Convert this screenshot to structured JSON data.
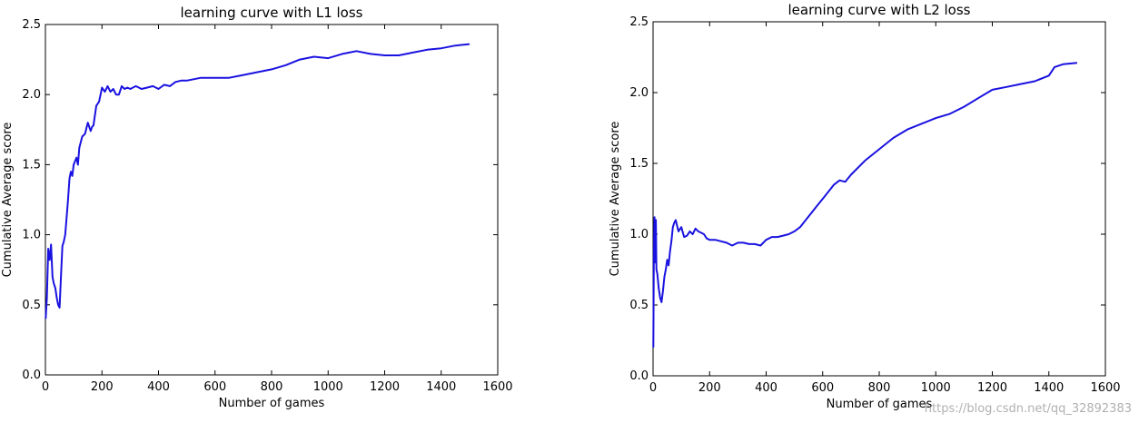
{
  "watermark": "https://blog.csdn.net/qq_32892383",
  "chart_data": [
    {
      "type": "line",
      "title": "learning curve with L1 loss",
      "xlabel": "Number of games",
      "ylabel": "Cumulative Average score",
      "xlim": [
        0,
        1600
      ],
      "ylim": [
        0.0,
        2.5
      ],
      "xticks": [
        0,
        200,
        400,
        600,
        800,
        1000,
        1200,
        1400,
        1600
      ],
      "yticks": [
        0.0,
        0.5,
        1.0,
        1.5,
        2.0,
        2.5
      ],
      "grid": false,
      "line_color": "#1a12e0",
      "series": [
        {
          "x": [
            1,
            5,
            10,
            15,
            20,
            25,
            30,
            35,
            40,
            45,
            50,
            55,
            60,
            65,
            70,
            75,
            80,
            85,
            90,
            95,
            100,
            110,
            115,
            120,
            130,
            140,
            150,
            160,
            165,
            170,
            180,
            190,
            200,
            210,
            220,
            230,
            240,
            250,
            260,
            270,
            280,
            290,
            300,
            320,
            340,
            360,
            380,
            400,
            420,
            440,
            460,
            480,
            500,
            550,
            600,
            650,
            700,
            750,
            800,
            850,
            900,
            950,
            1000,
            1050,
            1100,
            1150,
            1200,
            1250,
            1300,
            1350,
            1400,
            1450,
            1500
          ],
          "y": [
            0.4,
            0.55,
            0.9,
            0.82,
            0.93,
            0.7,
            0.65,
            0.62,
            0.55,
            0.5,
            0.48,
            0.7,
            0.92,
            0.95,
            1.0,
            1.12,
            1.25,
            1.4,
            1.45,
            1.42,
            1.5,
            1.55,
            1.5,
            1.62,
            1.7,
            1.72,
            1.8,
            1.74,
            1.77,
            1.78,
            1.92,
            1.95,
            2.05,
            2.02,
            2.06,
            2.02,
            2.04,
            2.0,
            2.0,
            2.06,
            2.04,
            2.05,
            2.04,
            2.06,
            2.04,
            2.05,
            2.06,
            2.04,
            2.07,
            2.06,
            2.09,
            2.1,
            2.1,
            2.12,
            2.12,
            2.12,
            2.14,
            2.16,
            2.18,
            2.21,
            2.25,
            2.27,
            2.26,
            2.29,
            2.31,
            2.29,
            2.28,
            2.28,
            2.3,
            2.32,
            2.33,
            2.35,
            2.36
          ]
        }
      ]
    },
    {
      "type": "line",
      "title": "learning curve with L2 loss",
      "xlabel": "Number of games",
      "ylabel": "Cumulative Average score",
      "xlim": [
        0,
        1600
      ],
      "ylim": [
        0.0,
        2.5
      ],
      "xticks": [
        0,
        200,
        400,
        600,
        800,
        1000,
        1200,
        1400,
        1600
      ],
      "yticks": [
        0.0,
        0.5,
        1.0,
        1.5,
        2.0,
        2.5
      ],
      "grid": false,
      "line_color": "#1a12e0",
      "series": [
        {
          "x": [
            1,
            3,
            5,
            8,
            10,
            12,
            15,
            20,
            25,
            30,
            35,
            40,
            45,
            50,
            55,
            60,
            65,
            70,
            75,
            80,
            90,
            100,
            110,
            120,
            130,
            140,
            150,
            160,
            170,
            180,
            190,
            200,
            220,
            240,
            260,
            280,
            300,
            320,
            340,
            360,
            380,
            400,
            420,
            440,
            460,
            480,
            500,
            520,
            540,
            560,
            580,
            600,
            620,
            640,
            660,
            680,
            700,
            750,
            800,
            850,
            900,
            950,
            1000,
            1050,
            1100,
            1150,
            1200,
            1250,
            1300,
            1350,
            1400,
            1420,
            1450,
            1500
          ],
          "y": [
            0.2,
            0.9,
            1.12,
            0.8,
            1.1,
            0.75,
            0.72,
            0.62,
            0.55,
            0.52,
            0.6,
            0.7,
            0.75,
            0.82,
            0.78,
            0.88,
            0.95,
            1.05,
            1.08,
            1.1,
            1.02,
            1.05,
            0.98,
            0.99,
            1.02,
            1.0,
            1.04,
            1.02,
            1.01,
            1.0,
            0.97,
            0.96,
            0.96,
            0.95,
            0.94,
            0.92,
            0.94,
            0.94,
            0.93,
            0.93,
            0.92,
            0.96,
            0.98,
            0.98,
            0.99,
            1.0,
            1.02,
            1.05,
            1.1,
            1.15,
            1.2,
            1.25,
            1.3,
            1.35,
            1.38,
            1.37,
            1.42,
            1.52,
            1.6,
            1.68,
            1.74,
            1.78,
            1.82,
            1.85,
            1.9,
            1.96,
            2.02,
            2.04,
            2.06,
            2.08,
            2.12,
            2.18,
            2.2,
            2.21
          ]
        }
      ]
    }
  ]
}
